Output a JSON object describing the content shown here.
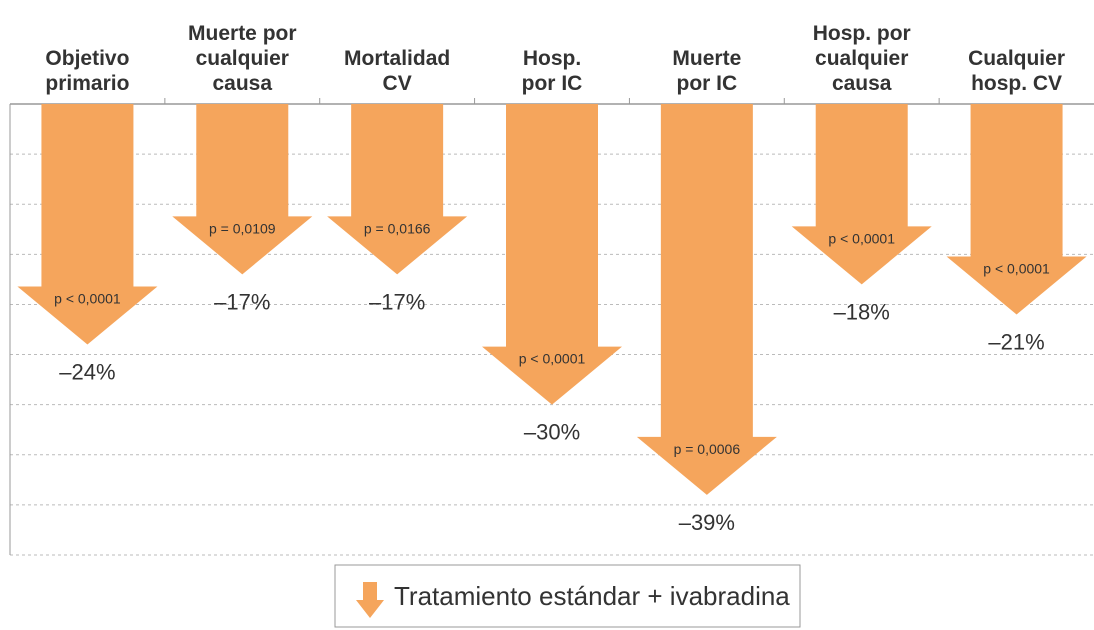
{
  "chart_data": {
    "type": "arrow-bar",
    "categories": [
      "Objetivo\nprimario",
      "Muerte por\ncualquier\ncausa",
      "Mortalidad\nCV",
      "Hosp.\npor IC",
      "Muerte\npor IC",
      "Hosp. por\ncualquier\ncausa",
      "Cualquier\nhosp. CV"
    ],
    "values": [
      -24,
      -17,
      -17,
      -30,
      -39,
      -18,
      -21
    ],
    "value_labels": [
      "–24%",
      "–17%",
      "–17%",
      "–30%",
      "–39%",
      "–18%",
      "–21%"
    ],
    "annotations": [
      "p < 0,0001",
      "p = 0,0109",
      "p = 0,0166",
      "p < 0,0001",
      "p = 0,0006",
      "p < 0,0001",
      "p < 0,0001"
    ],
    "series_name": "Tratamiento estándar + ivabradina",
    "color": "#f5a55c",
    "ylim": [
      -45,
      0
    ],
    "yticks": [
      0,
      -5,
      -10,
      -15,
      -20,
      -25,
      -30,
      -35,
      -40,
      -45
    ],
    "grid": true
  }
}
